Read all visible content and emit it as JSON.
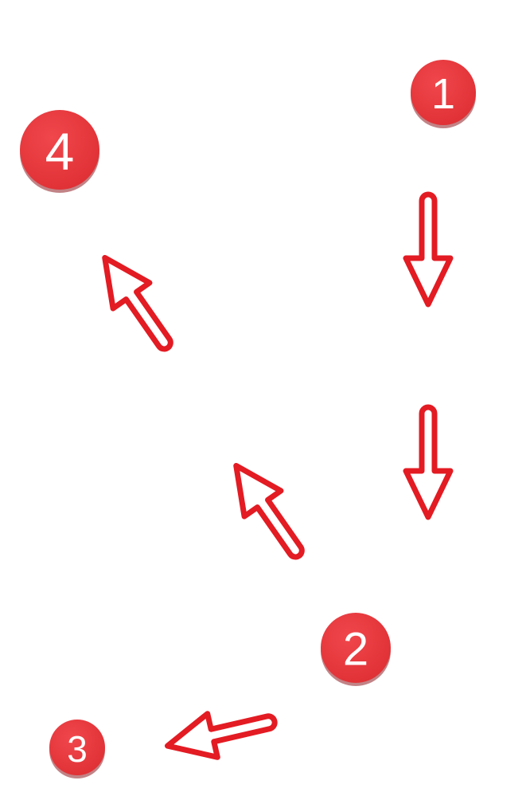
{
  "colors": {
    "badge_fill": "#e8383d",
    "badge_shadow": "#8f1e22",
    "badge_text": "#ffffff",
    "arrow_stroke": "#e31b23",
    "background": "#ffffff"
  },
  "badges": [
    {
      "id": "step-1",
      "label": "1"
    },
    {
      "id": "step-2",
      "label": "2"
    },
    {
      "id": "step-3",
      "label": "3"
    },
    {
      "id": "step-4",
      "label": "4"
    }
  ],
  "arrows": [
    {
      "id": "arrow-down-upper",
      "direction": "down",
      "icon": "arrow-down-icon"
    },
    {
      "id": "arrow-down-lower",
      "direction": "down",
      "icon": "arrow-down-icon"
    },
    {
      "id": "arrow-left",
      "direction": "down-left",
      "icon": "arrow-left-icon"
    },
    {
      "id": "arrow-up-left-lower",
      "direction": "up-left",
      "icon": "arrow-up-left-icon"
    },
    {
      "id": "arrow-up-left-upper",
      "direction": "up-left",
      "icon": "arrow-up-left-icon"
    }
  ]
}
